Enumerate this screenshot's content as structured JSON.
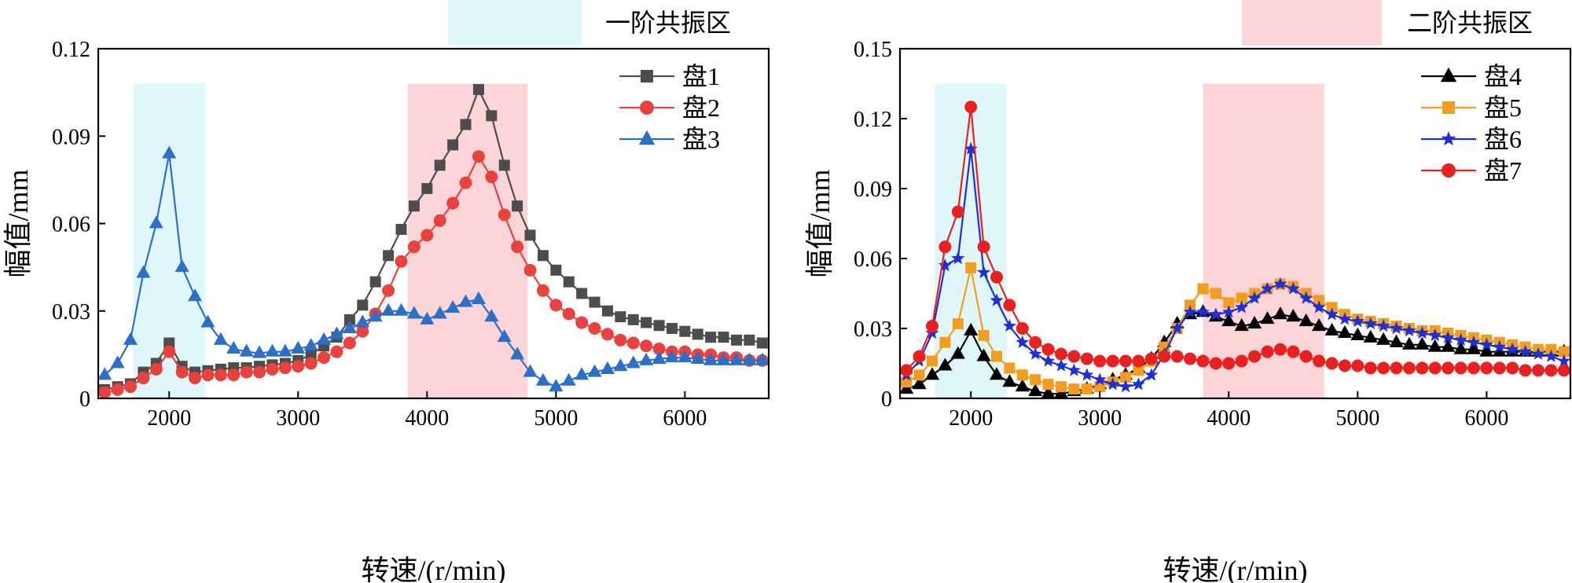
{
  "legend_regions": {
    "first": {
      "label": "一阶共振区",
      "color": "#dff7fb"
    },
    "second": {
      "label": "二阶共振区",
      "color": "#fbd5d8"
    }
  },
  "chart_data": [
    {
      "type": "line",
      "xlabel": "转速/(r/min)",
      "ylabel": "幅值/mm",
      "xlim": [
        1450,
        6650
      ],
      "ylim": [
        0,
        0.12
      ],
      "xticks": [
        2000,
        3000,
        4000,
        5000,
        6000
      ],
      "yticks": [
        0,
        0.03,
        0.06,
        0.09,
        0.12
      ],
      "ytick_labels": [
        "0",
        "0.03",
        "0.06",
        "0.09",
        "0.12"
      ],
      "bands": [
        {
          "region": "first",
          "x0": 1720,
          "x1": 2280,
          "ymax": 0.108
        },
        {
          "region": "second",
          "x0": 3850,
          "x1": 4780,
          "ymax": 0.108
        }
      ],
      "legend_position": "top-right",
      "series": [
        {
          "name": "盘1",
          "color": "#4d4d4d",
          "marker": "square",
          "x": [
            1500,
            1600,
            1700,
            1800,
            1900,
            2000,
            2100,
            2200,
            2300,
            2400,
            2500,
            2600,
            2700,
            2800,
            2900,
            3000,
            3100,
            3200,
            3300,
            3400,
            3500,
            3600,
            3700,
            3800,
            3900,
            4000,
            4100,
            4200,
            4300,
            4400,
            4500,
            4600,
            4700,
            4800,
            4900,
            5000,
            5100,
            5200,
            5300,
            5400,
            5500,
            5600,
            5700,
            5800,
            5900,
            6000,
            6100,
            6200,
            6300,
            6400,
            6500,
            6600
          ],
          "y": [
            0.003,
            0.004,
            0.005,
            0.009,
            0.012,
            0.019,
            0.011,
            0.009,
            0.0095,
            0.01,
            0.0105,
            0.0105,
            0.011,
            0.0115,
            0.012,
            0.013,
            0.015,
            0.018,
            0.021,
            0.027,
            0.032,
            0.04,
            0.049,
            0.058,
            0.066,
            0.072,
            0.08,
            0.087,
            0.094,
            0.106,
            0.097,
            0.08,
            0.066,
            0.056,
            0.049,
            0.044,
            0.04,
            0.036,
            0.033,
            0.03,
            0.028,
            0.027,
            0.026,
            0.025,
            0.024,
            0.023,
            0.022,
            0.021,
            0.021,
            0.02,
            0.02,
            0.019
          ]
        },
        {
          "name": "盘2",
          "color": "#e8413e",
          "marker": "circle",
          "x": [
            1500,
            1600,
            1700,
            1800,
            1900,
            2000,
            2100,
            2200,
            2300,
            2400,
            2500,
            2600,
            2700,
            2800,
            2900,
            3000,
            3100,
            3200,
            3300,
            3400,
            3500,
            3600,
            3700,
            3800,
            3900,
            4000,
            4100,
            4200,
            4300,
            4400,
            4500,
            4600,
            4700,
            4800,
            4900,
            5000,
            5100,
            5200,
            5300,
            5400,
            5500,
            5600,
            5700,
            5800,
            5900,
            6000,
            6100,
            6200,
            6300,
            6400,
            6500,
            6600
          ],
          "y": [
            0.002,
            0.003,
            0.004,
            0.007,
            0.01,
            0.016,
            0.009,
            0.007,
            0.008,
            0.008,
            0.008,
            0.009,
            0.009,
            0.01,
            0.0105,
            0.011,
            0.012,
            0.014,
            0.016,
            0.019,
            0.023,
            0.029,
            0.037,
            0.047,
            0.052,
            0.056,
            0.061,
            0.067,
            0.074,
            0.083,
            0.076,
            0.063,
            0.052,
            0.044,
            0.037,
            0.032,
            0.029,
            0.026,
            0.024,
            0.022,
            0.02,
            0.019,
            0.018,
            0.017,
            0.016,
            0.016,
            0.015,
            0.015,
            0.014,
            0.014,
            0.013,
            0.013
          ]
        },
        {
          "name": "盘3",
          "color": "#2b6fc9",
          "marker": "triangle",
          "x": [
            1500,
            1600,
            1700,
            1800,
            1900,
            2000,
            2100,
            2200,
            2300,
            2400,
            2500,
            2600,
            2700,
            2800,
            2900,
            3000,
            3100,
            3200,
            3300,
            3400,
            3500,
            3600,
            3700,
            3800,
            3900,
            4000,
            4100,
            4200,
            4300,
            4400,
            4500,
            4600,
            4700,
            4800,
            4900,
            5000,
            5100,
            5200,
            5300,
            5400,
            5500,
            5600,
            5700,
            5800,
            5900,
            6000,
            6100,
            6200,
            6300,
            6400,
            6500,
            6600
          ],
          "y": [
            0.008,
            0.012,
            0.02,
            0.043,
            0.06,
            0.084,
            0.045,
            0.035,
            0.026,
            0.02,
            0.017,
            0.016,
            0.0155,
            0.016,
            0.016,
            0.017,
            0.018,
            0.02,
            0.022,
            0.024,
            0.026,
            0.028,
            0.03,
            0.03,
            0.029,
            0.027,
            0.029,
            0.031,
            0.033,
            0.034,
            0.028,
            0.021,
            0.015,
            0.009,
            0.006,
            0.004,
            0.006,
            0.008,
            0.009,
            0.01,
            0.011,
            0.012,
            0.013,
            0.0135,
            0.014,
            0.014,
            0.0135,
            0.013,
            0.013,
            0.013,
            0.013,
            0.013
          ]
        }
      ]
    },
    {
      "type": "line",
      "xlabel": "转速/(r/min)",
      "ylabel": "幅值/mm",
      "xlim": [
        1450,
        6650
      ],
      "ylim": [
        0,
        0.15
      ],
      "xticks": [
        2000,
        3000,
        4000,
        5000,
        6000
      ],
      "yticks": [
        0,
        0.03,
        0.06,
        0.09,
        0.12,
        0.15
      ],
      "ytick_labels": [
        "0",
        "0.03",
        "0.06",
        "0.09",
        "0.12",
        "0.15"
      ],
      "bands": [
        {
          "region": "first",
          "x0": 1720,
          "x1": 2280,
          "ymax": 0.135
        },
        {
          "region": "second",
          "x0": 3800,
          "x1": 4740,
          "ymax": 0.135
        }
      ],
      "legend_position": "top-right",
      "series": [
        {
          "name": "盘4",
          "color": "#000000",
          "marker": "triangle",
          "x": [
            1500,
            1600,
            1700,
            1800,
            1900,
            2000,
            2100,
            2200,
            2300,
            2400,
            2500,
            2600,
            2700,
            2800,
            2900,
            3000,
            3100,
            3200,
            3300,
            3400,
            3500,
            3600,
            3700,
            3800,
            3900,
            4000,
            4100,
            4200,
            4300,
            4400,
            4500,
            4600,
            4700,
            4800,
            4900,
            5000,
            5100,
            5200,
            5300,
            5400,
            5500,
            5600,
            5700,
            5800,
            5900,
            6000,
            6100,
            6200,
            6300,
            6400,
            6500,
            6600
          ],
          "y": [
            0.004,
            0.006,
            0.01,
            0.014,
            0.019,
            0.029,
            0.018,
            0.01,
            0.007,
            0.005,
            0.003,
            0.002,
            0.002,
            0.003,
            0.004,
            0.006,
            0.008,
            0.01,
            0.013,
            0.017,
            0.024,
            0.032,
            0.036,
            0.037,
            0.035,
            0.033,
            0.031,
            0.032,
            0.034,
            0.036,
            0.035,
            0.033,
            0.031,
            0.029,
            0.028,
            0.027,
            0.026,
            0.025,
            0.024,
            0.023,
            0.023,
            0.022,
            0.022,
            0.021,
            0.021,
            0.02,
            0.02,
            0.02,
            0.02,
            0.02,
            0.02,
            0.02
          ]
        },
        {
          "name": "盘5",
          "color": "#f39c1f",
          "marker": "square",
          "x": [
            1500,
            1600,
            1700,
            1800,
            1900,
            2000,
            2100,
            2200,
            2300,
            2400,
            2500,
            2600,
            2700,
            2800,
            2900,
            3000,
            3100,
            3200,
            3300,
            3400,
            3500,
            3600,
            3700,
            3800,
            3900,
            4000,
            4100,
            4200,
            4300,
            4400,
            4500,
            4600,
            4700,
            4800,
            4900,
            5000,
            5100,
            5200,
            5300,
            5400,
            5500,
            5600,
            5700,
            5800,
            5900,
            6000,
            6100,
            6200,
            6300,
            6400,
            6500,
            6600
          ],
          "y": [
            0.007,
            0.01,
            0.016,
            0.024,
            0.032,
            0.056,
            0.027,
            0.018,
            0.013,
            0.01,
            0.008,
            0.006,
            0.005,
            0.004,
            0.004,
            0.005,
            0.007,
            0.009,
            0.012,
            0.016,
            0.022,
            0.03,
            0.04,
            0.047,
            0.045,
            0.041,
            0.043,
            0.045,
            0.047,
            0.049,
            0.048,
            0.045,
            0.042,
            0.039,
            0.036,
            0.034,
            0.033,
            0.032,
            0.031,
            0.03,
            0.029,
            0.029,
            0.028,
            0.027,
            0.026,
            0.025,
            0.024,
            0.023,
            0.022,
            0.021,
            0.021,
            0.02
          ]
        },
        {
          "name": "盘6",
          "color": "#1f2fd6",
          "marker": "star",
          "x": [
            1500,
            1600,
            1700,
            1800,
            1900,
            2000,
            2100,
            2200,
            2300,
            2400,
            2500,
            2600,
            2700,
            2800,
            2900,
            3000,
            3100,
            3200,
            3300,
            3400,
            3500,
            3600,
            3700,
            3800,
            3900,
            4000,
            4100,
            4200,
            4300,
            4400,
            4500,
            4600,
            4700,
            4800,
            4900,
            5000,
            5100,
            5200,
            5300,
            5400,
            5500,
            5600,
            5700,
            5800,
            5900,
            6000,
            6100,
            6200,
            6300,
            6400,
            6500,
            6600
          ],
          "y": [
            0.01,
            0.016,
            0.028,
            0.057,
            0.06,
            0.107,
            0.054,
            0.042,
            0.031,
            0.024,
            0.019,
            0.016,
            0.014,
            0.012,
            0.01,
            0.008,
            0.006,
            0.005,
            0.006,
            0.01,
            0.019,
            0.03,
            0.037,
            0.037,
            0.036,
            0.037,
            0.039,
            0.043,
            0.047,
            0.049,
            0.047,
            0.043,
            0.039,
            0.036,
            0.034,
            0.033,
            0.032,
            0.031,
            0.03,
            0.029,
            0.028,
            0.027,
            0.026,
            0.025,
            0.024,
            0.023,
            0.022,
            0.021,
            0.02,
            0.019,
            0.018,
            0.016
          ]
        },
        {
          "name": "盘7",
          "color": "#e8201f",
          "marker": "circle",
          "x": [
            1500,
            1600,
            1700,
            1800,
            1900,
            2000,
            2100,
            2200,
            2300,
            2400,
            2500,
            2600,
            2700,
            2800,
            2900,
            3000,
            3100,
            3200,
            3300,
            3400,
            3500,
            3600,
            3700,
            3800,
            3900,
            4000,
            4100,
            4200,
            4300,
            4400,
            4500,
            4600,
            4700,
            4800,
            4900,
            5000,
            5100,
            5200,
            5300,
            5400,
            5500,
            5600,
            5700,
            5800,
            5900,
            6000,
            6100,
            6200,
            6300,
            6400,
            6500,
            6600
          ],
          "y": [
            0.012,
            0.018,
            0.031,
            0.065,
            0.08,
            0.125,
            0.065,
            0.052,
            0.04,
            0.03,
            0.024,
            0.021,
            0.019,
            0.018,
            0.017,
            0.016,
            0.016,
            0.016,
            0.016,
            0.017,
            0.018,
            0.018,
            0.017,
            0.016,
            0.015,
            0.015,
            0.016,
            0.018,
            0.02,
            0.021,
            0.02,
            0.018,
            0.016,
            0.015,
            0.014,
            0.014,
            0.013,
            0.013,
            0.013,
            0.013,
            0.013,
            0.013,
            0.013,
            0.013,
            0.013,
            0.013,
            0.013,
            0.013,
            0.012,
            0.012,
            0.012,
            0.012
          ]
        }
      ]
    }
  ]
}
